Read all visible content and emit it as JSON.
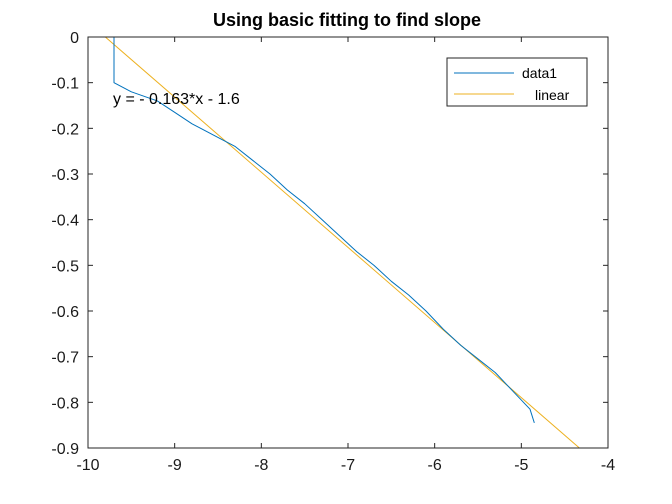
{
  "chart_data": {
    "type": "line",
    "title": "Using basic fitting to find slope",
    "xlabel": "",
    "ylabel": "",
    "xlim": [
      -10,
      -4
    ],
    "ylim": [
      -0.9,
      0
    ],
    "xticks": [
      -10,
      -9,
      -8,
      -7,
      -6,
      -5,
      -4
    ],
    "yticks": [
      0,
      -0.1,
      -0.2,
      -0.3,
      -0.4,
      -0.5,
      -0.6,
      -0.7,
      -0.8,
      -0.9
    ],
    "grid": false,
    "legend_position": "top-right",
    "annotation": "y = - 0.163*x - 1.6",
    "series": [
      {
        "name": "data1",
        "color": "#0072BD",
        "x": [
          -9.7,
          -9.7,
          -9.7,
          -9.5,
          -9.2,
          -9.0,
          -8.8,
          -8.55,
          -8.3,
          -8.1,
          -7.9,
          -7.7,
          -7.5,
          -7.3,
          -7.1,
          -6.9,
          -6.7,
          -6.5,
          -6.3,
          -6.1,
          -5.9,
          -5.7,
          -5.5,
          -5.3,
          -5.1,
          -4.9,
          -4.85
        ],
        "y": [
          0.0,
          -0.05,
          -0.1,
          -0.12,
          -0.14,
          -0.165,
          -0.19,
          -0.215,
          -0.24,
          -0.27,
          -0.3,
          -0.335,
          -0.365,
          -0.4,
          -0.435,
          -0.47,
          -0.5,
          -0.535,
          -0.565,
          -0.6,
          -0.64,
          -0.675,
          -0.705,
          -0.735,
          -0.775,
          -0.815,
          -0.845
        ]
      },
      {
        "name": "linear",
        "color": "#EDB120",
        "x": [
          -9.8,
          -4.33
        ],
        "y": [
          0.0,
          -0.9
        ]
      }
    ]
  }
}
